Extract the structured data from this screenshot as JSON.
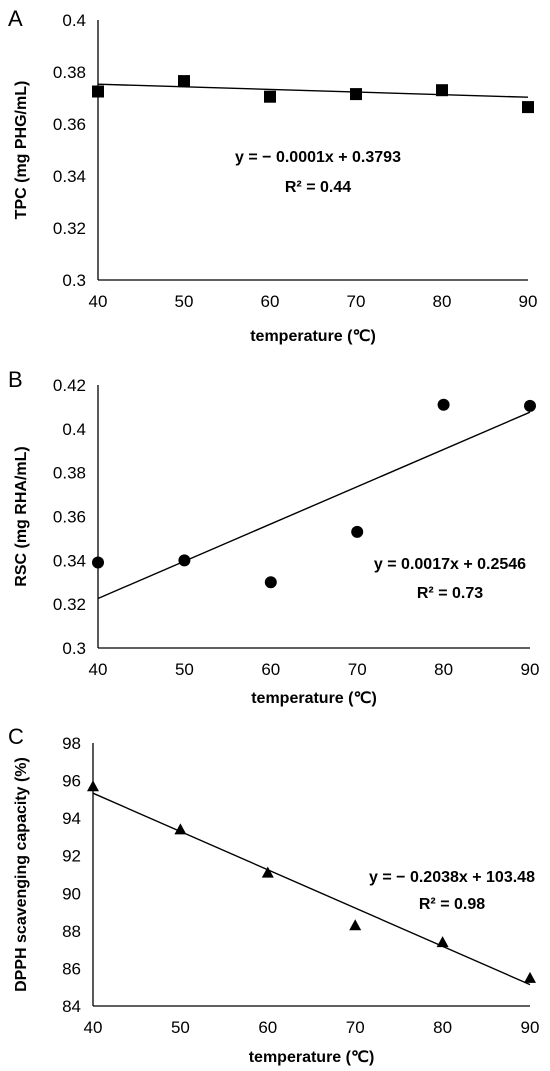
{
  "chart_data": [
    {
      "type": "scatter",
      "panel_label": "A",
      "xlabel": "temperature (℃)",
      "ylabel": "TPC (mg PHG/mL)",
      "x_ticks": [
        "40",
        "50",
        "60",
        "70",
        "80",
        "90"
      ],
      "y_ticks": [
        "0.3",
        "0.32",
        "0.34",
        "0.36",
        "0.38",
        "0.4"
      ],
      "xlim": [
        40,
        90
      ],
      "ylim": [
        0.3,
        0.4
      ],
      "marker": "square",
      "grid": false,
      "points": [
        {
          "x": 40,
          "y": 0.3725
        },
        {
          "x": 50,
          "y": 0.3765
        },
        {
          "x": 60,
          "y": 0.3705
        },
        {
          "x": 70,
          "y": 0.3715
        },
        {
          "x": 80,
          "y": 0.373
        },
        {
          "x": 90,
          "y": 0.3665
        }
      ],
      "trendline": {
        "slope": -0.0001,
        "intercept": 0.3793
      },
      "equation": "y = − 0.0001x + 0.3793",
      "r_squared": "R² = 0.44"
    },
    {
      "type": "scatter",
      "panel_label": "B",
      "xlabel": "temperature (℃)",
      "ylabel": "RSC (mg RHA/mL)",
      "x_ticks": [
        "40",
        "50",
        "60",
        "70",
        "80",
        "90"
      ],
      "y_ticks": [
        "0.3",
        "0.32",
        "0.34",
        "0.36",
        "0.38",
        "0.4",
        "0.42"
      ],
      "xlim": [
        40,
        90
      ],
      "ylim": [
        0.3,
        0.42
      ],
      "marker": "circle",
      "grid": false,
      "points": [
        {
          "x": 40,
          "y": 0.339
        },
        {
          "x": 50,
          "y": 0.34
        },
        {
          "x": 60,
          "y": 0.33
        },
        {
          "x": 70,
          "y": 0.353
        },
        {
          "x": 80,
          "y": 0.411
        },
        {
          "x": 90,
          "y": 0.4105
        }
      ],
      "trendline": {
        "slope": 0.0017,
        "intercept": 0.2546
      },
      "equation": "y = 0.0017x + 0.2546",
      "r_squared": "R² = 0.73"
    },
    {
      "type": "scatter",
      "panel_label": "C",
      "xlabel": "temperature (℃)",
      "ylabel": "DPPH scavenging capacity (%)",
      "x_ticks": [
        "40",
        "50",
        "60",
        "70",
        "80",
        "90"
      ],
      "y_ticks": [
        "84",
        "86",
        "88",
        "90",
        "92",
        "94",
        "96",
        "98"
      ],
      "xlim": [
        40,
        90
      ],
      "ylim": [
        84,
        98
      ],
      "marker": "triangle",
      "grid": false,
      "points": [
        {
          "x": 40,
          "y": 95.7
        },
        {
          "x": 50,
          "y": 93.4
        },
        {
          "x": 60,
          "y": 91.1
        },
        {
          "x": 70,
          "y": 88.3
        },
        {
          "x": 80,
          "y": 87.4
        },
        {
          "x": 90,
          "y": 85.5
        }
      ],
      "trendline": {
        "slope": -0.2038,
        "intercept": 103.48
      },
      "equation": "y = − 0.2038x + 103.48",
      "r_squared": "R² = 0.98"
    }
  ]
}
